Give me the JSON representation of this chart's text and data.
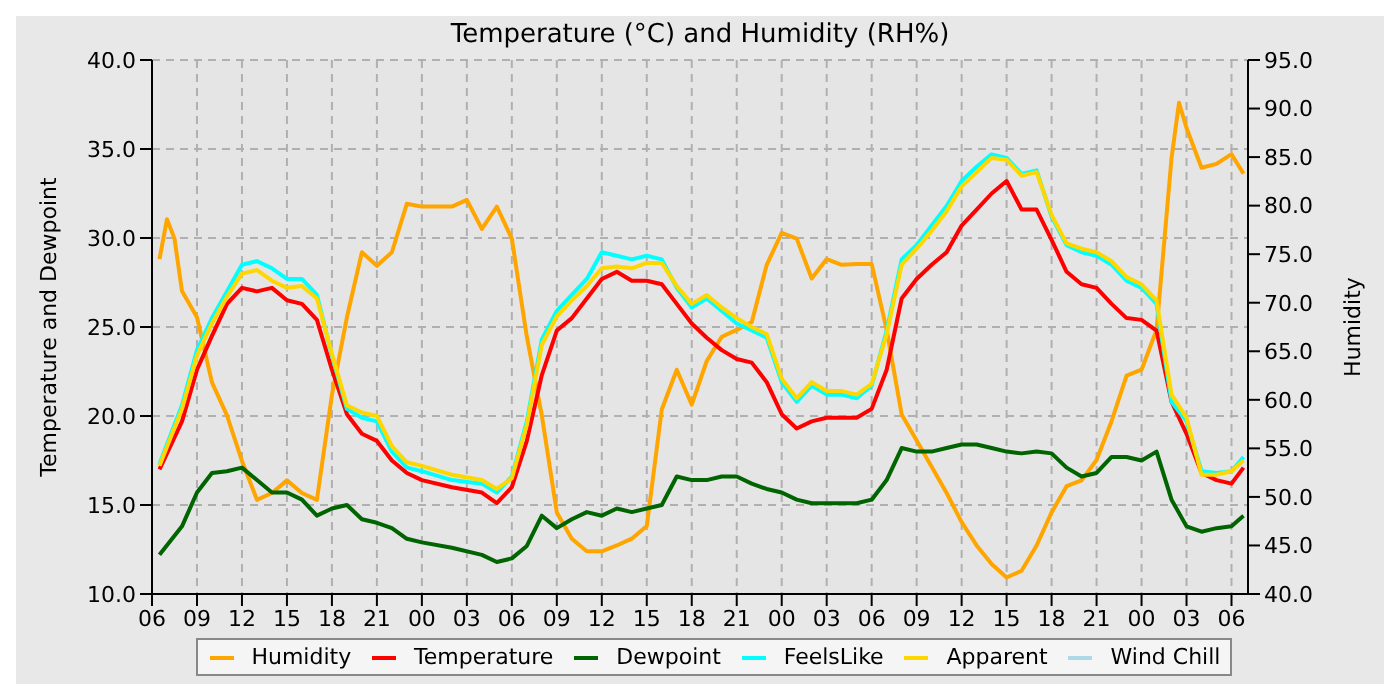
{
  "chart_data": {
    "type": "line",
    "title": "Temperature (°C) and Humidity (RH%)",
    "ylabel": "Temperature and Dewpoint",
    "y2label": "Humidity",
    "x": [
      6.5,
      8,
      9,
      10,
      11,
      12,
      13,
      14,
      15,
      16,
      17,
      18,
      19,
      20,
      21,
      22,
      23,
      24,
      26,
      28,
      29,
      30,
      31,
      32,
      33,
      34,
      35,
      36,
      37,
      38,
      39,
      40,
      41,
      42,
      43,
      44,
      45,
      46,
      47,
      48,
      49,
      50,
      51,
      52,
      53,
      54,
      55,
      56,
      57,
      58,
      59,
      60,
      61,
      62,
      63,
      64,
      65,
      66,
      67,
      68,
      69,
      70,
      71,
      72,
      73,
      74,
      75,
      76,
      77,
      78,
      78.8
    ],
    "xlim": [
      6,
      79.1
    ],
    "xticks": [
      {
        "value": 6,
        "label": "06"
      },
      {
        "value": 9,
        "label": "09"
      },
      {
        "value": 12,
        "label": "12"
      },
      {
        "value": 15,
        "label": "15"
      },
      {
        "value": 18,
        "label": "18"
      },
      {
        "value": 21,
        "label": "21"
      },
      {
        "value": 24,
        "label": "00"
      },
      {
        "value": 27,
        "label": "03"
      },
      {
        "value": 30,
        "label": "06"
      },
      {
        "value": 33,
        "label": "09"
      },
      {
        "value": 36,
        "label": "12"
      },
      {
        "value": 39,
        "label": "15"
      },
      {
        "value": 42,
        "label": "18"
      },
      {
        "value": 45,
        "label": "21"
      },
      {
        "value": 48,
        "label": "00"
      },
      {
        "value": 51,
        "label": "03"
      },
      {
        "value": 54,
        "label": "06"
      },
      {
        "value": 57,
        "label": "09"
      },
      {
        "value": 60,
        "label": "12"
      },
      {
        "value": 63,
        "label": "15"
      },
      {
        "value": 66,
        "label": "18"
      },
      {
        "value": 69,
        "label": "21"
      },
      {
        "value": 72,
        "label": "00"
      },
      {
        "value": 75,
        "label": "03"
      },
      {
        "value": 78,
        "label": "06"
      }
    ],
    "ylim": [
      10,
      40
    ],
    "yticks": [
      {
        "value": 10,
        "label": "10.0"
      },
      {
        "value": 15,
        "label": "15.0"
      },
      {
        "value": 20,
        "label": "20.0"
      },
      {
        "value": 25,
        "label": "25.0"
      },
      {
        "value": 30,
        "label": "30.0"
      },
      {
        "value": 35,
        "label": "35.0"
      },
      {
        "value": 40,
        "label": "40.0"
      }
    ],
    "y2lim": [
      40,
      95
    ],
    "y2ticks": [
      {
        "value": 40,
        "label": "40.0"
      },
      {
        "value": 45,
        "label": "45.0"
      },
      {
        "value": 50,
        "label": "50.0"
      },
      {
        "value": 55,
        "label": "55.0"
      },
      {
        "value": 60,
        "label": "60.0"
      },
      {
        "value": 65,
        "label": "65.0"
      },
      {
        "value": 70,
        "label": "70.0"
      },
      {
        "value": 75,
        "label": "75.0"
      },
      {
        "value": 80,
        "label": "80.0"
      },
      {
        "value": 85,
        "label": "85.0"
      },
      {
        "value": 90,
        "label": "90.0"
      },
      {
        "value": 95,
        "label": "95.0"
      }
    ],
    "grid": true,
    "legend": "bottom",
    "marker": "none",
    "line_style": "solid",
    "series": [
      {
        "name": "Humidity",
        "color": "#ffa500",
        "axis": "y2",
        "x": [
          6.5,
          7,
          7.5,
          8,
          9,
          10,
          11,
          12,
          13,
          14,
          15,
          16,
          17,
          18,
          19,
          20,
          21,
          22,
          23,
          24,
          25,
          26,
          27,
          28,
          29,
          30,
          31,
          32,
          33,
          34,
          35,
          36,
          37,
          38,
          39,
          40,
          41,
          42,
          43,
          44,
          45,
          46,
          47,
          48,
          49,
          50,
          51,
          52,
          53,
          54,
          55,
          56,
          57,
          58,
          59,
          60,
          61,
          62,
          63,
          64,
          65,
          66,
          67,
          68,
          69,
          70,
          71,
          72,
          73,
          74,
          74.5,
          75,
          76,
          77,
          78,
          78.8
        ],
        "values": [
          74.5,
          78.6,
          76.6,
          71.2,
          68.5,
          61.8,
          58.4,
          53.7,
          49.7,
          50.4,
          51.7,
          50.4,
          49.7,
          60.5,
          68.5,
          75.2,
          73.8,
          75.2,
          80.2,
          79.9,
          79.9,
          79.9,
          80.6,
          77.6,
          79.9,
          76.6,
          66.5,
          58.4,
          48.4,
          45.7,
          44.4,
          44.4,
          45.0,
          45.7,
          47.0,
          59.0,
          63.1,
          59.5,
          64.0,
          66.5,
          67.2,
          68.0,
          73.9,
          77.2,
          76.6,
          72.5,
          74.5,
          73.9,
          74,
          74,
          67.2,
          58.5,
          55.8,
          53.1,
          50.4,
          47.4,
          45.0,
          43.1,
          41.7,
          42.4,
          45.0,
          48.4,
          51.1,
          51.7,
          53.8,
          57.8,
          62.5,
          63.1,
          67.2,
          84.9,
          90.6,
          88.0,
          83.9,
          84.3,
          85.3,
          83.3
        ]
      },
      {
        "name": "Temperature",
        "color": "#ff0000",
        "values": [
          17.0,
          19.7,
          22.6,
          24.5,
          26.3,
          27.2,
          27.0,
          27.2,
          26.5,
          26.3,
          25.4,
          22.6,
          20.1,
          19.0,
          18.6,
          17.5,
          16.8,
          16.4,
          16.0,
          15.7,
          15.1,
          16.0,
          18.6,
          22.3,
          24.8,
          25.5,
          26.6,
          27.7,
          28.1,
          27.6,
          27.6,
          27.4,
          26.3,
          25.2,
          24.4,
          23.7,
          23.2,
          23.0,
          21.9,
          20.1,
          19.3,
          19.7,
          19.9,
          19.9,
          19.9,
          20.4,
          22.6,
          26.6,
          27.7,
          28.5,
          29.2,
          30.7,
          31.6,
          32.5,
          33.2,
          31.6,
          31.6,
          29.9,
          28.1,
          27.4,
          27.2,
          26.3,
          25.5,
          25.4,
          24.8,
          20.8,
          19.0,
          16.8,
          16.4,
          16.2,
          17.1
        ]
      },
      {
        "name": "Dewpoint",
        "color": "#006400",
        "values": [
          12.2,
          13.8,
          15.7,
          16.8,
          16.9,
          17.1,
          16.4,
          15.7,
          15.7,
          15.3,
          14.4,
          14.8,
          15.0,
          14.2,
          14.0,
          13.7,
          13.1,
          12.9,
          12.6,
          12.2,
          11.8,
          12.0,
          12.7,
          14.4,
          13.7,
          14.2,
          14.6,
          14.4,
          14.8,
          14.6,
          14.8,
          15.0,
          16.6,
          16.4,
          16.4,
          16.6,
          16.6,
          16.2,
          15.9,
          15.7,
          15.3,
          15.1,
          15.1,
          15.1,
          15.1,
          15.3,
          16.4,
          18.2,
          18.0,
          18.0,
          18.2,
          18.4,
          18.4,
          18.2,
          18.0,
          17.9,
          18.0,
          17.9,
          17.1,
          16.6,
          16.8,
          17.7,
          17.7,
          17.5,
          18.0,
          15.3,
          13.8,
          13.5,
          13.7,
          13.8,
          14.4
        ]
      },
      {
        "name": "FeelsLike",
        "color": "#00ffff",
        "values": [
          17.3,
          20.6,
          23.7,
          25.5,
          27.0,
          28.5,
          28.7,
          28.3,
          27.7,
          27.7,
          26.8,
          23.4,
          20.4,
          19.9,
          19.7,
          18.0,
          17.1,
          16.9,
          16.4,
          16.2,
          15.7,
          16.6,
          19.7,
          24.3,
          25.9,
          26.8,
          27.7,
          29.2,
          29.0,
          28.8,
          29.0,
          28.8,
          27.2,
          26.1,
          26.6,
          25.9,
          25.2,
          24.8,
          24.4,
          21.9,
          20.8,
          21.7,
          21.2,
          21.2,
          21.0,
          21.7,
          24.8,
          28.8,
          29.6,
          30.7,
          31.8,
          33.2,
          34.0,
          34.7,
          34.5,
          33.6,
          33.8,
          31.2,
          29.6,
          29.2,
          29.0,
          28.5,
          27.6,
          27.2,
          26.3,
          20.8,
          19.7,
          16.9,
          16.8,
          16.9,
          17.7
        ]
      },
      {
        "name": "Apparent",
        "color": "#ffd700",
        "values": [
          17.2,
          20.4,
          23.4,
          25.2,
          26.7,
          28.0,
          28.2,
          27.6,
          27.2,
          27.3,
          26.6,
          23.5,
          20.6,
          20.2,
          20.0,
          18.3,
          17.4,
          17.2,
          16.7,
          16.4,
          15.9,
          16.5,
          19.5,
          24.0,
          25.6,
          26.5,
          27.3,
          28.3,
          28.4,
          28.3,
          28.6,
          28.6,
          27.3,
          26.3,
          26.8,
          26.1,
          25.5,
          25.0,
          24.6,
          22.1,
          21.0,
          21.9,
          21.4,
          21.4,
          21.2,
          21.8,
          24.6,
          28.5,
          29.4,
          30.4,
          31.5,
          32.9,
          33.7,
          34.5,
          34.4,
          33.5,
          33.7,
          31.3,
          29.7,
          29.4,
          29.2,
          28.7,
          27.8,
          27.4,
          26.5,
          21.2,
          19.9,
          16.7,
          16.7,
          16.9,
          17.5
        ]
      },
      {
        "name": "Wind Chill",
        "color": "#add8e6",
        "values": [
          null,
          null,
          null,
          null,
          null,
          null,
          null,
          null,
          null,
          null,
          null,
          null,
          null,
          null,
          null,
          null,
          null,
          null,
          null,
          null,
          null,
          null,
          null,
          null,
          null,
          null,
          null,
          null,
          null,
          null,
          null,
          null,
          null,
          null,
          null,
          null,
          null,
          null,
          null,
          null,
          null,
          null,
          null,
          null,
          null,
          null,
          null,
          null,
          null,
          null,
          null,
          null,
          null,
          null,
          null,
          null,
          null,
          null,
          null,
          null,
          null,
          null,
          null,
          null,
          null,
          null,
          null,
          null,
          null,
          null,
          null
        ]
      }
    ]
  }
}
